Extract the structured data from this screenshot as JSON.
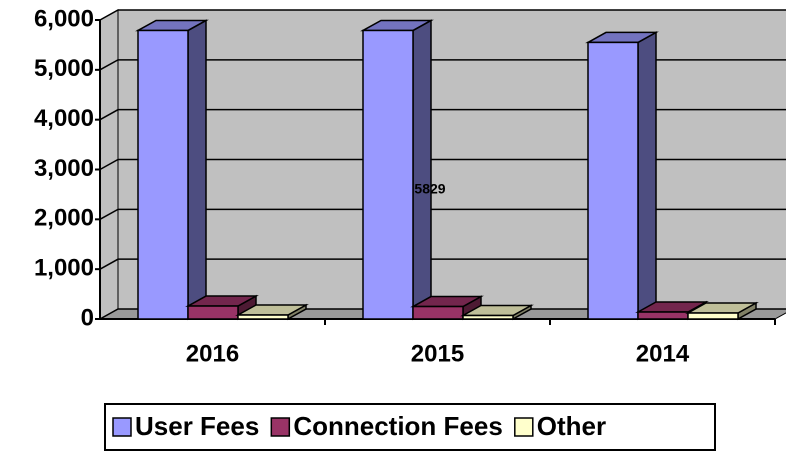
{
  "chart_data": {
    "type": "bar3d",
    "annotation": "5829",
    "categories": [
      "2016",
      "2015",
      "2014"
    ],
    "series": [
      {
        "name": "User Fees",
        "color": "#9999ff",
        "values": [
          5790,
          5790,
          5550
        ]
      },
      {
        "name": "Connection Fees",
        "color": "#993366",
        "values": [
          260,
          250,
          140
        ]
      },
      {
        "name": "Other",
        "color": "#ffffcc",
        "values": [
          80,
          70,
          120
        ]
      }
    ],
    "ylim": [
      0,
      6000
    ],
    "yticks": [
      0,
      {
        "value": 1000,
        "label": "1,000"
      },
      {
        "value": 2000,
        "label": "2,000"
      },
      {
        "value": 3000,
        "label": "3,000"
      },
      {
        "value": 4000,
        "label": "4,000"
      },
      {
        "value": 5000,
        "label": "5,000"
      },
      {
        "value": 6000,
        "label": "6,000"
      }
    ],
    "grid": true
  }
}
